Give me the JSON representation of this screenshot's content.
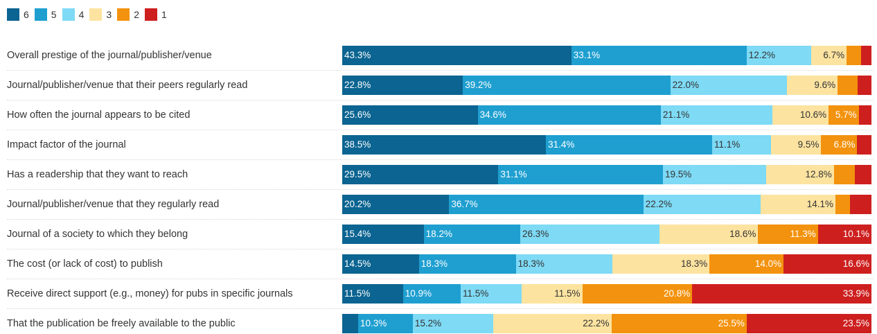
{
  "chart_data": {
    "type": "bar",
    "orientation": "horizontal",
    "stacked": true,
    "normalized_to": 100,
    "legend_placement": "top-left",
    "legend": [
      "6",
      "5",
      "4",
      "3",
      "2",
      "1"
    ],
    "colors": [
      "#0b6491",
      "#1f9fd0",
      "#7edaf5",
      "#fde3a0",
      "#f3920e",
      "#ce1f1f"
    ],
    "label_colors": [
      "#ffffff",
      "#ffffff",
      "#333333",
      "#333333",
      "#ffffff",
      "#ffffff"
    ],
    "categories": [
      "Overall prestige of the journal/publisher/venue",
      "Journal/publisher/venue that their peers regularly read",
      "How often the journal appears to be cited",
      "Impact factor of the journal",
      "Has a readership that they want to reach",
      "Journal/publisher/venue that they regularly read",
      "Journal of a society to which they belong",
      "The cost (or lack of cost) to publish",
      "Receive direct support (e.g., money) for pubs in specific journals",
      "That the publication be freely available to the public"
    ],
    "series": [
      {
        "name": "6",
        "values": [
          43.3,
          22.8,
          25.6,
          38.5,
          29.5,
          20.2,
          15.4,
          14.5,
          11.5,
          3.0
        ]
      },
      {
        "name": "5",
        "values": [
          33.1,
          39.2,
          34.6,
          31.4,
          31.1,
          36.7,
          18.2,
          18.3,
          10.9,
          10.3
        ]
      },
      {
        "name": "4",
        "values": [
          12.2,
          22.0,
          21.1,
          11.1,
          19.5,
          22.2,
          26.3,
          18.3,
          11.5,
          15.2
        ]
      },
      {
        "name": "3",
        "values": [
          6.7,
          9.6,
          10.6,
          9.5,
          12.8,
          14.1,
          18.6,
          18.3,
          11.5,
          22.2
        ]
      },
      {
        "name": "2",
        "values": [
          2.7,
          3.8,
          5.7,
          6.8,
          3.9,
          2.8,
          11.3,
          14.0,
          20.8,
          25.5
        ]
      },
      {
        "name": "1",
        "values": [
          2.0,
          2.6,
          2.4,
          2.7,
          3.2,
          4.0,
          10.1,
          16.6,
          33.9,
          23.5
        ]
      }
    ],
    "value_labels": [
      [
        "43.3%",
        "33.1%",
        "12.2%",
        "6.7%",
        "",
        ""
      ],
      [
        "22.8%",
        "39.2%",
        "22.0%",
        "9.6%",
        "",
        ""
      ],
      [
        "25.6%",
        "34.6%",
        "21.1%",
        "10.6%",
        "5.7%",
        ""
      ],
      [
        "38.5%",
        "31.4%",
        "11.1%",
        "9.5%",
        "6.8%",
        ""
      ],
      [
        "29.5%",
        "31.1%",
        "19.5%",
        "12.8%",
        "",
        ""
      ],
      [
        "20.2%",
        "36.7%",
        "22.2%",
        "14.1%",
        "",
        ""
      ],
      [
        "15.4%",
        "18.2%",
        "26.3%",
        "18.6%",
        "11.3%",
        "10.1%"
      ],
      [
        "14.5%",
        "18.3%",
        "18.3%",
        "18.3%",
        "14.0%",
        "16.6%"
      ],
      [
        "11.5%",
        "10.9%",
        "11.5%",
        "11.5%",
        "20.8%",
        "33.9%"
      ],
      [
        "",
        "10.3%",
        "15.2%",
        "22.2%",
        "25.5%",
        "23.5%"
      ]
    ],
    "label_align": [
      "left",
      "left",
      "left",
      "right",
      "right",
      "right"
    ]
  }
}
